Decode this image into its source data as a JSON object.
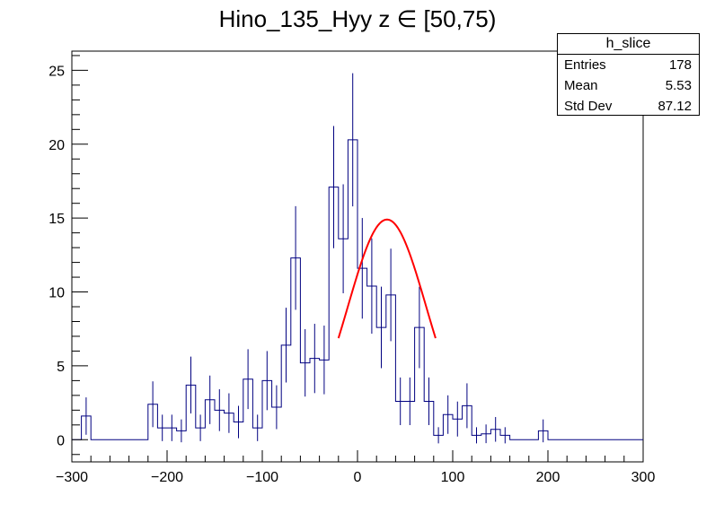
{
  "chart_data": {
    "type": "histogram",
    "title": "Hino_135_Hyy z  ∈ [50,75)",
    "xlabel": "",
    "ylabel": "",
    "xlim": [
      -300,
      300
    ],
    "ylim": [
      -1.5,
      26.3
    ],
    "x_ticks": [
      -300,
      -200,
      -100,
      0,
      100,
      200,
      300
    ],
    "x_tick_labels": [
      "−300",
      "−200",
      "−100",
      "0",
      "100",
      "200",
      "300"
    ],
    "y_ticks": [
      0,
      5,
      10,
      15,
      20,
      25
    ],
    "y_tick_labels": [
      "0",
      "5",
      "10",
      "15",
      "20",
      "25"
    ],
    "bin_edges_start": -300,
    "bin_width": 10,
    "bin_values": [
      0,
      1.6,
      0,
      0,
      0,
      0,
      0,
      0,
      2.4,
      0.8,
      0.8,
      0.6,
      3.7,
      0.8,
      2.7,
      2.0,
      1.8,
      1.2,
      4.1,
      0.8,
      4.0,
      2.2,
      6.4,
      12.3,
      5.2,
      5.5,
      5.4,
      17.1,
      13.6,
      20.3,
      11.6,
      10.4,
      7.6,
      9.8,
      2.6,
      2.6,
      7.6,
      2.6,
      0.3,
      1.7,
      1.4,
      2.3,
      0.3,
      0.4,
      0.7,
      0.3,
      0,
      0,
      0,
      0.6,
      0,
      0,
      0,
      0,
      0,
      0,
      0,
      0,
      0,
      0
    ],
    "error_bars": true,
    "fit": {
      "function": "gaussian",
      "color": "#ff0000",
      "x_range": [
        -20,
        82
      ],
      "amplitude": 14.9,
      "mean": 31,
      "sigma": 41
    },
    "stats_box": {
      "title": "h_slice",
      "rows": [
        {
          "label": "Entries",
          "value": "178"
        },
        {
          "label": "Mean",
          "value": "5.53"
        },
        {
          "label": "Std Dev",
          "value": "87.12"
        }
      ]
    },
    "line_color": "#000080",
    "grid": false
  }
}
